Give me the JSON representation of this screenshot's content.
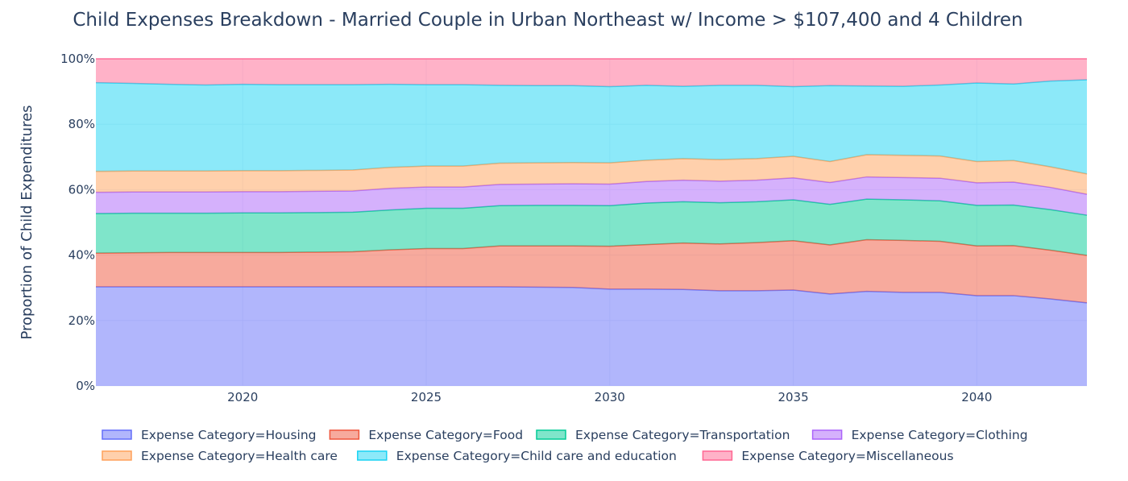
{
  "chart_data": {
    "type": "area",
    "stacked": true,
    "normalized": true,
    "title": "Child Expenses Breakdown - Married Couple in Urban Northeast w/ Income > $107,400 and 4 Children",
    "xlabel": "",
    "ylabel": "Proportion of Child Expenditures",
    "xlim": [
      2016,
      2043
    ],
    "ylim": [
      0,
      100
    ],
    "x_ticks": [
      2020,
      2025,
      2030,
      2035,
      2040
    ],
    "y_ticks": [
      0,
      20,
      40,
      60,
      80,
      100
    ],
    "y_tick_labels": [
      "0%",
      "20%",
      "40%",
      "60%",
      "80%",
      "100%"
    ],
    "grid": true,
    "legend_position": "bottom",
    "x": [
      2016,
      2017,
      2018,
      2019,
      2020,
      2021,
      2022,
      2023,
      2024,
      2025,
      2026,
      2027,
      2028,
      2029,
      2030,
      2031,
      2032,
      2033,
      2034,
      2035,
      2036,
      2037,
      2038,
      2039,
      2040,
      2041,
      2042,
      2043
    ],
    "series": [
      {
        "name": "Expense Category=Housing",
        "color": "#636efa",
        "values": [
          30.3,
          30.3,
          30.3,
          30.3,
          30.3,
          30.3,
          30.3,
          30.3,
          30.3,
          30.3,
          30.3,
          30.3,
          30.2,
          30.1,
          29.6,
          29.6,
          29.5,
          29.1,
          29.1,
          29.3,
          28.1,
          28.9,
          28.6,
          28.6,
          27.6,
          27.6,
          26.6,
          25.4
        ]
      },
      {
        "name": "Expense Category=Food",
        "color": "#ef553b",
        "values": [
          10.3,
          10.4,
          10.5,
          10.5,
          10.5,
          10.5,
          10.6,
          10.7,
          11.3,
          11.7,
          11.7,
          12.5,
          12.6,
          12.7,
          13.1,
          13.6,
          14.2,
          14.3,
          14.7,
          15.1,
          15.0,
          15.8,
          15.9,
          15.6,
          15.2,
          15.3,
          14.9,
          14.5
        ]
      },
      {
        "name": "Expense Category=Transportation",
        "color": "#00cc96",
        "values": [
          12.1,
          12.1,
          12.0,
          12.0,
          12.1,
          12.1,
          12.1,
          12.1,
          12.2,
          12.3,
          12.3,
          12.3,
          12.4,
          12.4,
          12.4,
          12.7,
          12.6,
          12.6,
          12.5,
          12.5,
          12.4,
          12.4,
          12.4,
          12.4,
          12.4,
          12.4,
          12.4,
          12.3
        ]
      },
      {
        "name": "Expense Category=Clothing",
        "color": "#ab63fa",
        "values": [
          6.5,
          6.5,
          6.5,
          6.5,
          6.5,
          6.5,
          6.5,
          6.5,
          6.6,
          6.5,
          6.5,
          6.5,
          6.5,
          6.6,
          6.6,
          6.6,
          6.6,
          6.6,
          6.6,
          6.7,
          6.7,
          6.8,
          6.8,
          6.9,
          6.9,
          7.0,
          6.8,
          6.4
        ]
      },
      {
        "name": "Expense Category=Health care",
        "color": "#ffa15a",
        "values": [
          6.4,
          6.4,
          6.4,
          6.4,
          6.4,
          6.4,
          6.4,
          6.4,
          6.4,
          6.4,
          6.4,
          6.5,
          6.5,
          6.5,
          6.5,
          6.5,
          6.6,
          6.6,
          6.6,
          6.6,
          6.4,
          6.8,
          6.8,
          6.8,
          6.5,
          6.6,
          6.3,
          6.2
        ]
      },
      {
        "name": "Expense Category=Child care and education",
        "color": "#19d3f3",
        "values": [
          27.1,
          26.8,
          26.5,
          26.3,
          26.4,
          26.3,
          26.2,
          26.1,
          25.4,
          24.9,
          24.9,
          23.8,
          23.6,
          23.5,
          23.3,
          22.9,
          22.1,
          22.7,
          22.4,
          21.3,
          23.2,
          21.0,
          21.1,
          21.7,
          24.0,
          23.4,
          26.2,
          28.8
        ]
      },
      {
        "name": "Expense Category=Miscellaneous",
        "color": "#ff6692",
        "values": [
          7.3,
          7.5,
          7.8,
          8.0,
          7.8,
          7.9,
          7.9,
          7.9,
          7.8,
          7.9,
          7.9,
          8.1,
          8.2,
          8.2,
          8.5,
          8.1,
          8.4,
          8.1,
          8.1,
          8.5,
          8.2,
          8.3,
          8.4,
          8.0,
          7.4,
          7.7,
          6.8,
          6.4
        ]
      }
    ]
  }
}
